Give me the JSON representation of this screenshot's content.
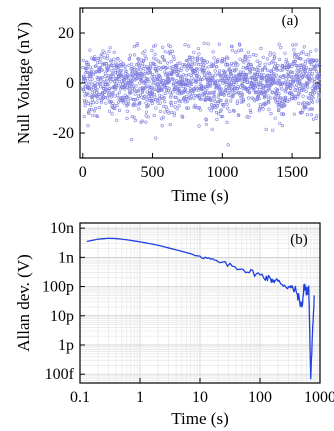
{
  "chart_data": [
    {
      "type": "scatter",
      "panel_label": "(a)",
      "xlabel": "Time (s)",
      "ylabel": "Null Voltage (nV)",
      "xlim": [
        -20,
        1700
      ],
      "ylim": [
        -30,
        30
      ],
      "x_ticks": [
        0,
        500,
        1000,
        1500
      ],
      "x_tick_labels": [
        "0",
        "500",
        "1000",
        "1500"
      ],
      "y_ticks": [
        -20,
        0,
        20
      ],
      "y_tick_labels": [
        "-20",
        "0",
        "20"
      ],
      "grid": false,
      "marker_color": "#8080e0",
      "series": [
        {
          "description_of_shape": "about 1700 points, one per second, mean 0 nV, scatter within roughly ±15 nV with a few outliers reaching about -25 nV",
          "n_points": 1700,
          "mean": 0,
          "std": 6.5
        }
      ]
    },
    {
      "type": "line",
      "panel_label": "(b)",
      "xlabel": "Time (s)",
      "ylabel": "Allan dev. (V)",
      "xscale": "log",
      "yscale": "log",
      "xlim": [
        0.1,
        1000
      ],
      "ylim": [
        5e-14,
        1.5e-08
      ],
      "x_ticks": [
        0.1,
        1,
        10,
        100,
        1000
      ],
      "x_tick_labels": [
        "0.1",
        "1",
        "10",
        "100",
        "1000"
      ],
      "y_ticks": [
        1e-13,
        1e-12,
        1e-11,
        1e-10,
        1e-09,
        1e-08
      ],
      "y_tick_labels": [
        "100f",
        "1p",
        "10p",
        "100p",
        "1n",
        "10n"
      ],
      "grid": true,
      "line_color": "#2040e0",
      "series": [
        {
          "x": [
            0.13,
            0.2,
            0.3,
            0.4,
            0.6,
            1,
            2,
            3,
            5,
            10,
            20,
            50,
            100,
            150,
            200,
            300,
            400,
            500,
            550,
            600,
            650,
            700,
            800
          ],
          "y": [
            3.5e-09,
            4.2e-09,
            4.5e-09,
            4.4e-09,
            4e-09,
            3.4e-09,
            2.6e-09,
            2.1e-09,
            1.6e-09,
            1.1e-09,
            7e-10,
            4e-10,
            2.5e-10,
            1.8e-10,
            1.5e-10,
            1e-10,
            7e-11,
            2e-11,
            1.2e-10,
            6e-11,
            1e-10,
            7e-14,
            5e-11
          ]
        }
      ]
    }
  ]
}
